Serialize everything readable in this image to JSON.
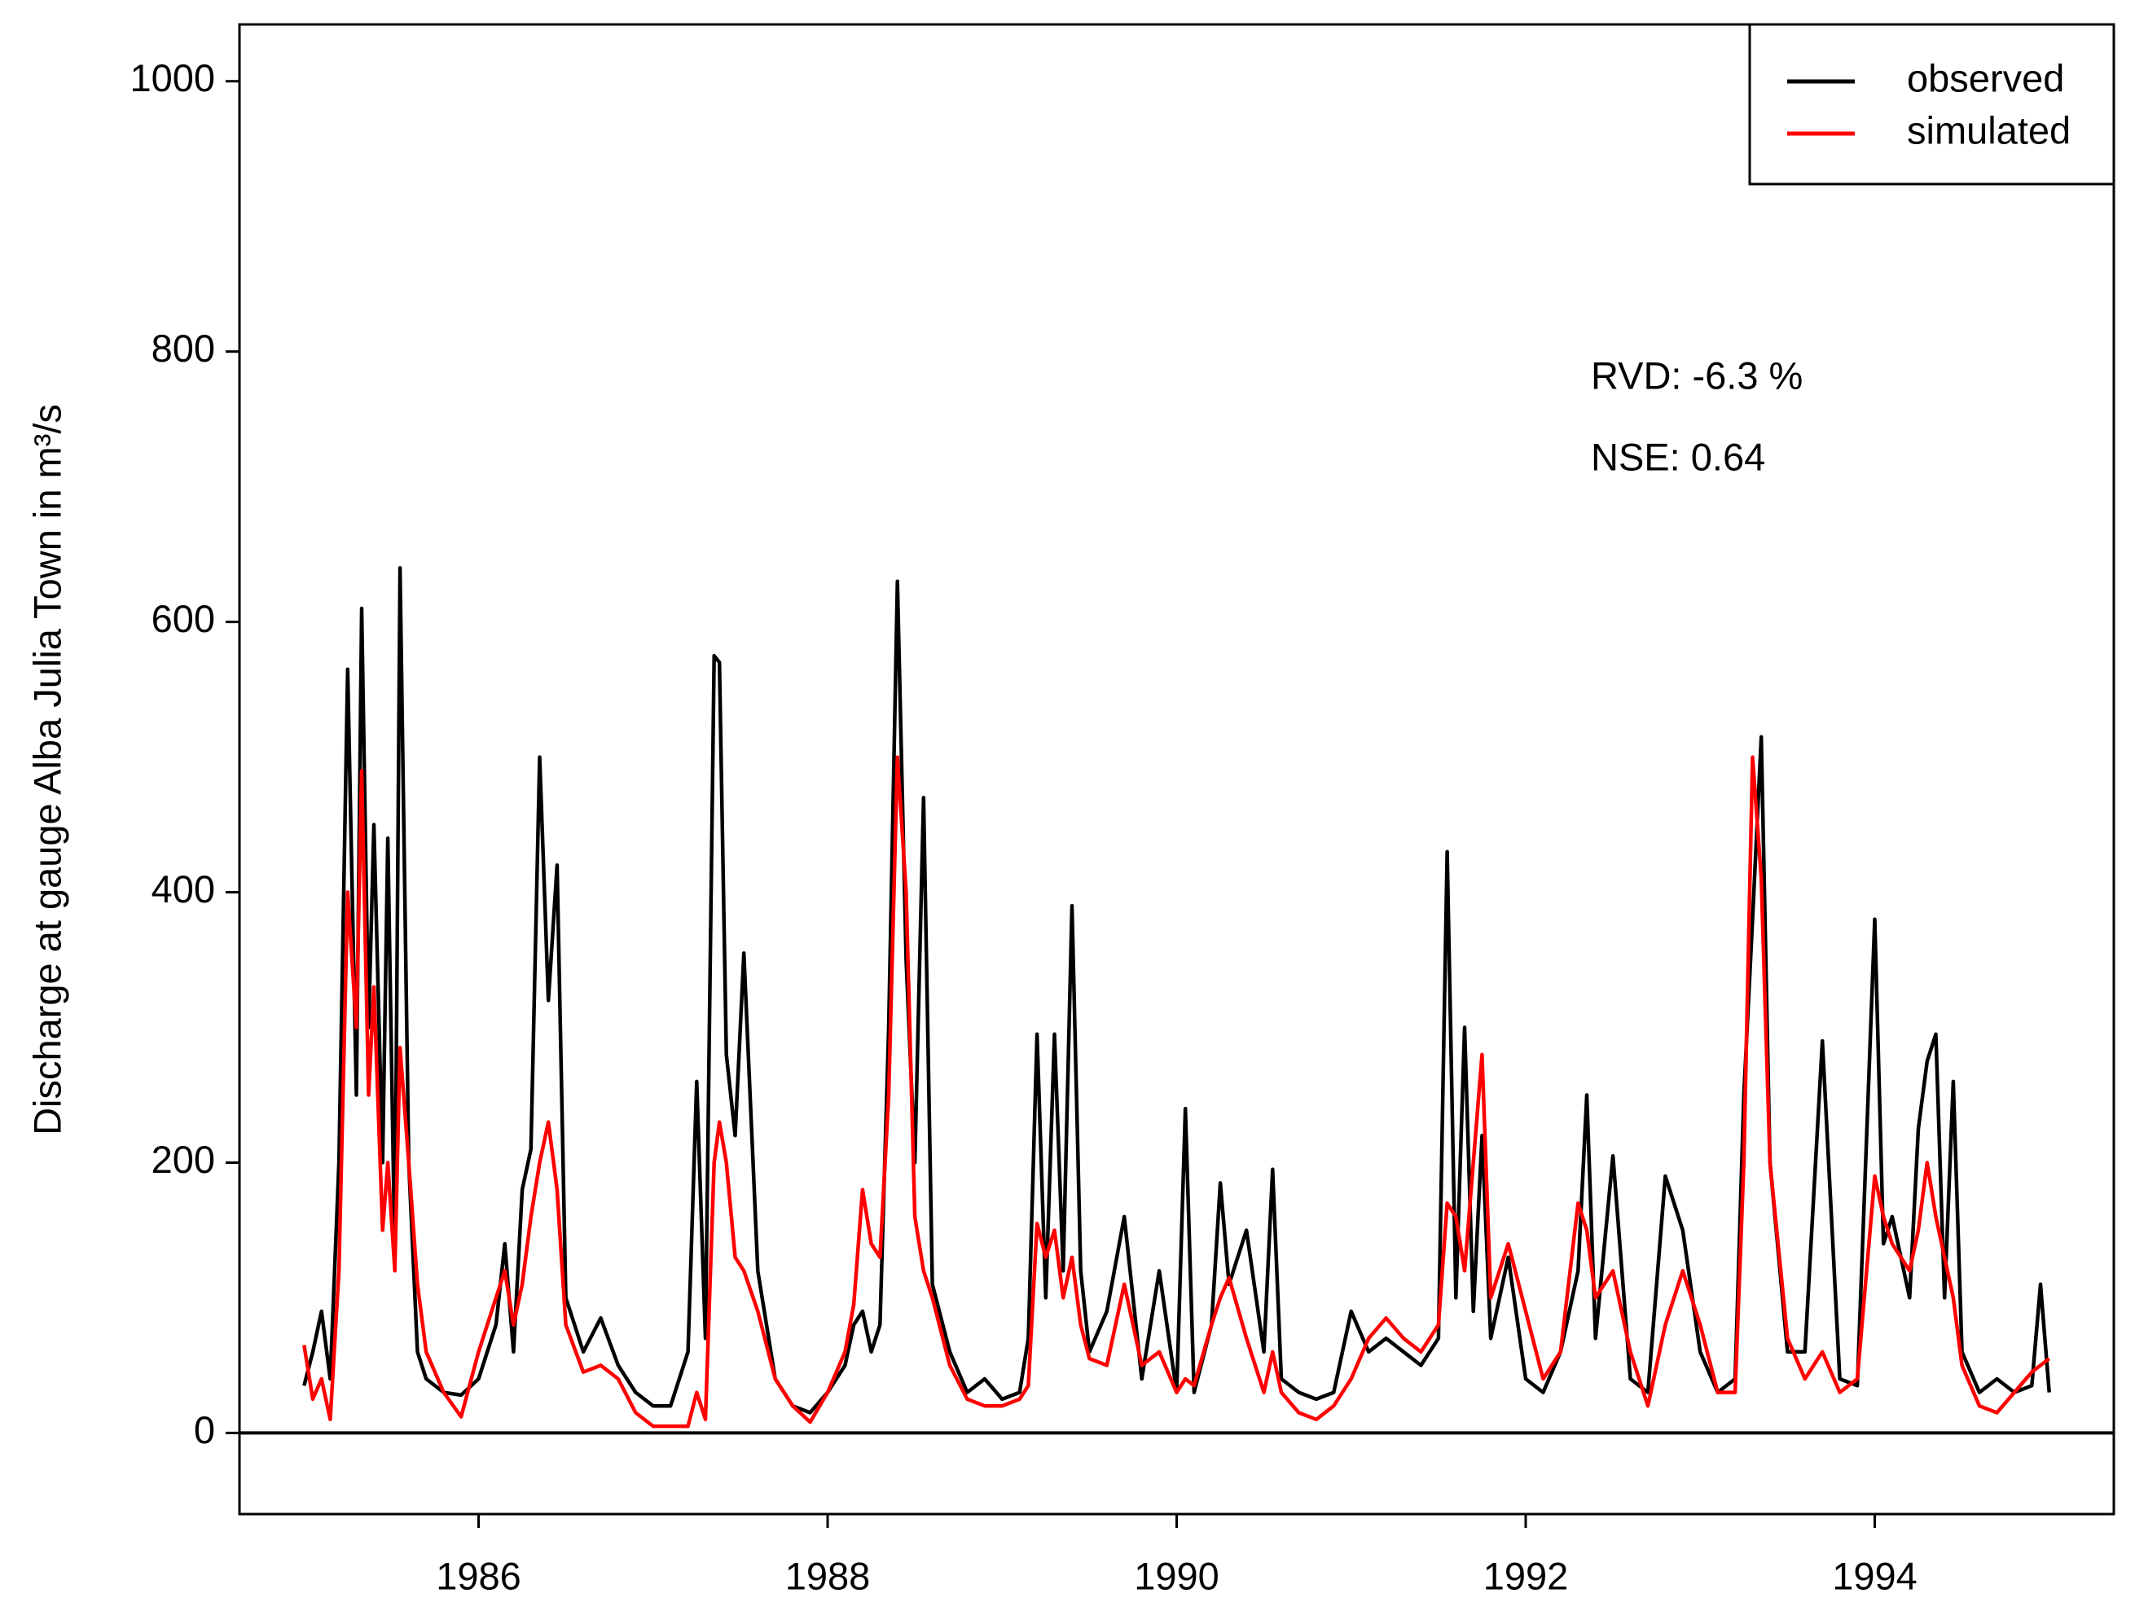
{
  "chart_data": {
    "type": "line",
    "ylabel": "Discharge at gauge Alba Julia Town  in  m³/s",
    "annotations": [
      "RVD:  -6.3 %",
      "NSE:   0.64"
    ],
    "legend": "topright",
    "hline": 0,
    "xlim": [
      1984.63,
      1995.37
    ],
    "xticks": [
      1986,
      1988,
      1990,
      1992,
      1994
    ],
    "ylim": [
      -60,
      1042
    ],
    "yticks": [
      0,
      200,
      400,
      600,
      800,
      1000
    ],
    "x": [
      1985.0,
      1985.05,
      1985.1,
      1985.15,
      1985.2,
      1985.25,
      1985.3,
      1985.33,
      1985.37,
      1985.4,
      1985.45,
      1985.48,
      1985.52,
      1985.55,
      1985.6,
      1985.65,
      1985.7,
      1985.8,
      1985.9,
      1986.0,
      1986.1,
      1986.15,
      1986.2,
      1986.25,
      1986.3,
      1986.35,
      1986.4,
      1986.45,
      1986.5,
      1986.6,
      1986.7,
      1986.8,
      1986.9,
      1987.0,
      1987.1,
      1987.2,
      1987.25,
      1987.3,
      1987.35,
      1987.38,
      1987.42,
      1987.47,
      1987.52,
      1987.6,
      1987.7,
      1987.8,
      1987.9,
      1988.0,
      1988.1,
      1988.15,
      1988.2,
      1988.25,
      1988.3,
      1988.35,
      1988.4,
      1988.45,
      1988.5,
      1988.55,
      1988.6,
      1988.7,
      1988.8,
      1988.9,
      1989.0,
      1989.1,
      1989.15,
      1989.2,
      1989.25,
      1989.3,
      1989.35,
      1989.4,
      1989.45,
      1989.5,
      1989.6,
      1989.7,
      1989.8,
      1989.9,
      1990.0,
      1990.05,
      1990.1,
      1990.2,
      1990.25,
      1990.3,
      1990.4,
      1990.5,
      1990.55,
      1990.6,
      1990.7,
      1990.8,
      1990.9,
      1991.0,
      1991.1,
      1991.2,
      1991.3,
      1991.4,
      1991.5,
      1991.55,
      1991.6,
      1991.65,
      1991.7,
      1991.75,
      1991.8,
      1991.9,
      1992.0,
      1992.1,
      1992.2,
      1992.3,
      1992.35,
      1992.4,
      1992.5,
      1992.6,
      1992.7,
      1992.8,
      1992.9,
      1993.0,
      1993.1,
      1993.2,
      1993.25,
      1993.3,
      1993.35,
      1993.4,
      1993.5,
      1993.6,
      1993.7,
      1993.8,
      1993.9,
      1994.0,
      1994.05,
      1994.1,
      1994.2,
      1994.25,
      1994.3,
      1994.35,
      1994.4,
      1994.45,
      1994.5,
      1994.6,
      1994.7,
      1994.8,
      1994.9,
      1994.95,
      1995.0
    ],
    "series": [
      {
        "name": "observed",
        "color": "#000000",
        "values": [
          35,
          60,
          90,
          40,
          200,
          565,
          250,
          610,
          300,
          450,
          200,
          440,
          130,
          640,
          200,
          60,
          40,
          30,
          28,
          40,
          80,
          140,
          60,
          180,
          210,
          500,
          320,
          420,
          100,
          60,
          85,
          50,
          30,
          20,
          20,
          60,
          260,
          70,
          575,
          570,
          280,
          220,
          355,
          120,
          40,
          20,
          15,
          30,
          50,
          80,
          90,
          60,
          80,
          300,
          630,
          350,
          200,
          470,
          110,
          60,
          30,
          40,
          25,
          30,
          70,
          295,
          100,
          295,
          120,
          390,
          120,
          60,
          90,
          160,
          40,
          120,
          30,
          240,
          30,
          80,
          185,
          110,
          150,
          60,
          195,
          40,
          30,
          25,
          30,
          90,
          60,
          70,
          60,
          50,
          70,
          430,
          100,
          300,
          90,
          220,
          70,
          130,
          40,
          30,
          60,
          120,
          250,
          70,
          205,
          40,
          30,
          190,
          150,
          60,
          30,
          40,
          250,
          380,
          515,
          200,
          60,
          60,
          290,
          40,
          35,
          380,
          140,
          160,
          100,
          225,
          275,
          295,
          100,
          260,
          60,
          30,
          40,
          30,
          35,
          110,
          30
        ]
      },
      {
        "name": "simulated",
        "color": "#ff0000",
        "values": [
          65,
          25,
          40,
          10,
          120,
          400,
          300,
          490,
          250,
          330,
          150,
          200,
          120,
          285,
          200,
          110,
          60,
          30,
          12,
          60,
          100,
          120,
          80,
          110,
          160,
          200,
          230,
          180,
          80,
          45,
          50,
          40,
          15,
          5,
          5,
          5,
          30,
          10,
          200,
          230,
          200,
          130,
          120,
          90,
          40,
          20,
          8,
          30,
          60,
          95,
          180,
          140,
          130,
          250,
          500,
          400,
          160,
          120,
          100,
          50,
          25,
          20,
          20,
          25,
          35,
          155,
          130,
          150,
          100,
          130,
          80,
          55,
          50,
          110,
          50,
          60,
          30,
          40,
          35,
          80,
          100,
          115,
          70,
          30,
          60,
          30,
          15,
          10,
          20,
          40,
          70,
          85,
          70,
          60,
          80,
          170,
          160,
          120,
          200,
          280,
          100,
          140,
          90,
          40,
          60,
          170,
          150,
          100,
          120,
          60,
          20,
          80,
          120,
          80,
          30,
          30,
          200,
          500,
          410,
          200,
          70,
          40,
          60,
          30,
          40,
          190,
          160,
          140,
          120,
          150,
          200,
          160,
          130,
          100,
          50,
          20,
          15,
          30,
          45,
          50,
          55
        ]
      }
    ]
  }
}
